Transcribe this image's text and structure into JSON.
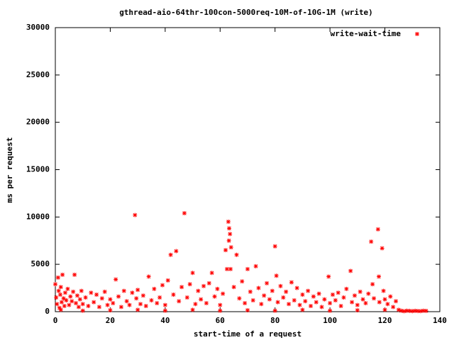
{
  "chart_data": {
    "type": "scatter",
    "title": "gthread-aio-64thr-100con-5000req-10M-of-10G-1M (write)",
    "x_label": "start-time of a request",
    "y_label": "ms per request",
    "xlim": [
      0,
      140
    ],
    "xticks": [
      0,
      20,
      40,
      60,
      80,
      100,
      120,
      140
    ],
    "ylim": [
      0,
      30000
    ],
    "yticks": [
      0,
      5000,
      10000,
      15000,
      20000,
      25000,
      30000
    ],
    "legend": "top-right",
    "series": [
      {
        "name": "write-wait-time",
        "color": "#ff0000",
        "x": [
          0,
          0.3,
          0.6,
          1,
          1.2,
          1.5,
          1.8,
          2,
          2.3,
          2.6,
          3,
          3.3,
          3.6,
          4,
          4.5,
          5,
          5.5,
          6,
          6.5,
          7,
          7.5,
          8,
          8.5,
          9,
          9.5,
          10,
          11,
          12,
          13,
          14,
          15,
          16,
          17,
          18,
          19,
          20,
          21,
          22,
          23,
          24,
          25,
          26,
          27,
          28,
          29,
          29.5,
          30,
          31,
          32,
          33,
          34,
          35,
          36,
          37,
          38,
          39,
          40,
          41,
          42,
          43,
          44,
          45,
          46,
          47,
          48,
          49,
          50,
          51,
          52,
          53,
          54,
          55,
          56,
          57,
          58,
          59,
          60,
          61,
          62,
          62.5,
          63,
          63.3,
          63.6,
          63.2,
          64,
          63.8,
          65,
          66,
          67,
          68,
          69,
          70,
          71,
          72,
          73,
          74,
          75,
          76,
          77,
          78,
          79,
          80,
          80.5,
          81,
          82,
          83,
          84,
          85,
          86,
          87,
          88,
          89,
          90,
          91,
          92,
          93,
          94,
          95,
          96,
          97,
          98,
          99.5,
          100,
          101,
          102,
          103,
          104,
          105,
          106,
          107.5,
          108,
          109,
          110,
          111,
          112,
          113,
          114,
          115,
          115.5,
          116,
          117.5,
          117.8,
          118,
          119,
          119.5,
          120,
          121,
          122,
          123,
          124,
          125,
          126,
          127,
          128,
          129,
          130,
          131,
          132,
          133,
          134,
          135,
          2,
          10,
          20,
          30,
          40,
          50,
          60,
          70,
          80,
          90,
          100,
          110,
          120
        ],
        "values": [
          2900,
          1500,
          800,
          3600,
          2200,
          400,
          1800,
          2600,
          1000,
          3900,
          1400,
          600,
          2000,
          1200,
          2400,
          700,
          1600,
          1100,
          2100,
          3900,
          900,
          1700,
          500,
          1300,
          2200,
          800,
          1500,
          600,
          2000,
          1000,
          1800,
          500,
          1400,
          2100,
          700,
          1300,
          900,
          3400,
          1600,
          500,
          2200,
          1100,
          700,
          2000,
          10200,
          1400,
          2300,
          800,
          1700,
          600,
          3700,
          1200,
          2400,
          900,
          1500,
          2800,
          700,
          3300,
          6000,
          1800,
          6400,
          1100,
          2600,
          10400,
          1500,
          2900,
          4100,
          800,
          2200,
          1300,
          2700,
          900,
          3000,
          4100,
          1600,
          2400,
          700,
          1900,
          6500,
          4500,
          9500,
          8800,
          8200,
          7500,
          6800,
          4500,
          2600,
          6000,
          1400,
          3200,
          900,
          4500,
          2100,
          1200,
          4800,
          2500,
          800,
          1700,
          3000,
          1300,
          2200,
          6900,
          3800,
          1000,
          2700,
          1500,
          2100,
          800,
          3100,
          1200,
          2500,
          700,
          1800,
          1100,
          2200,
          600,
          1600,
          1000,
          1900,
          500,
          1300,
          3700,
          900,
          1800,
          1200,
          2000,
          600,
          1500,
          2400,
          4300,
          1000,
          1700,
          700,
          2100,
          1300,
          900,
          1900,
          7400,
          2900,
          1400,
          8700,
          3700,
          1000,
          6700,
          2200,
          1300,
          800,
          1600,
          500,
          1100,
          200,
          100,
          50,
          100,
          80,
          60,
          90,
          70,
          60,
          100,
          80,
          200,
          100,
          150,
          200,
          100,
          200,
          100,
          150,
          100,
          200,
          100,
          150,
          200
        ]
      }
    ]
  }
}
